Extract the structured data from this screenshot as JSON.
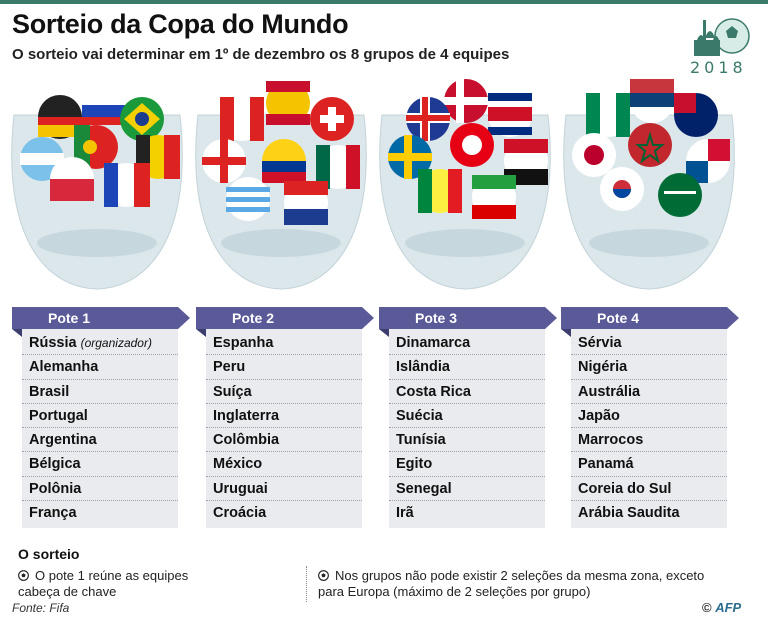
{
  "header": {
    "title": "Sorteio da Copa do Mundo",
    "subtitle": "O sorteio vai determinar em 1º de dezembro os 8 grupos de 4 equipes",
    "logo_year": "2018"
  },
  "pots": [
    {
      "label": "Pote 1",
      "teams": [
        {
          "name": "Rússia",
          "note": "(organizador)"
        },
        {
          "name": "Alemanha"
        },
        {
          "name": "Brasil"
        },
        {
          "name": "Portugal"
        },
        {
          "name": "Argentina"
        },
        {
          "name": "Bélgica"
        },
        {
          "name": "Polônia"
        },
        {
          "name": "França"
        }
      ]
    },
    {
      "label": "Pote 2",
      "teams": [
        {
          "name": "Espanha"
        },
        {
          "name": "Peru"
        },
        {
          "name": "Suíça"
        },
        {
          "name": "Inglaterra"
        },
        {
          "name": "Colômbia"
        },
        {
          "name": "México"
        },
        {
          "name": "Uruguai"
        },
        {
          "name": "Croácia"
        }
      ]
    },
    {
      "label": "Pote 3",
      "teams": [
        {
          "name": "Dinamarca"
        },
        {
          "name": "Islândia"
        },
        {
          "name": "Costa Rica"
        },
        {
          "name": "Suécia"
        },
        {
          "name": "Tunísia"
        },
        {
          "name": "Egito"
        },
        {
          "name": "Senegal"
        },
        {
          "name": "Irã"
        }
      ]
    },
    {
      "label": "Pote 4",
      "teams": [
        {
          "name": "Sérvia"
        },
        {
          "name": "Nigéria"
        },
        {
          "name": "Austrália"
        },
        {
          "name": "Japão"
        },
        {
          "name": "Marrocos"
        },
        {
          "name": "Panamá"
        },
        {
          "name": "Coreia do Sul"
        },
        {
          "name": "Arábia Saudita"
        }
      ]
    }
  ],
  "draw": {
    "title": "O sorteio",
    "note_1": "O pote 1 reúne as equipes cabeça de chave",
    "note_2": "Nos grupos não pode existir 2 seleções da mesma zona, exceto para Europa (máximo de 2 seleções por grupo)"
  },
  "footer": {
    "source": "Fonte: Fifa",
    "credit_symbol": "©",
    "credit": "AFP"
  },
  "colors": {
    "accent": "#5b5a98",
    "list_bg": "#e9ebef",
    "logo": "#3b7a6a"
  },
  "icons": {
    "note_bullet": "soccer-ball-icon",
    "logo": "world-cup-2018-logo"
  }
}
